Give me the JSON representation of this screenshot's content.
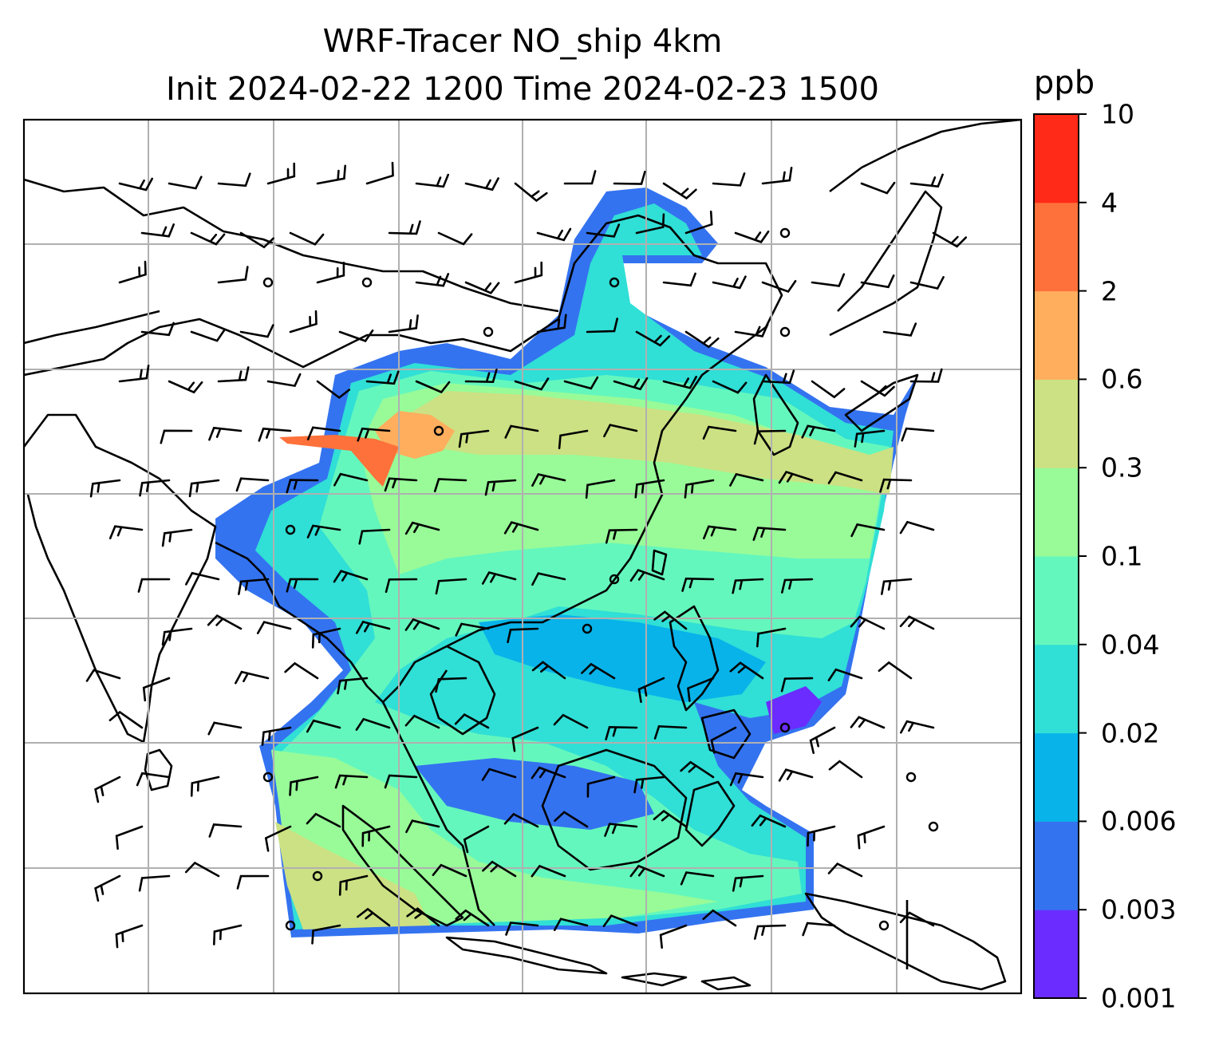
{
  "title_line1": "WRF-Tracer NO_ship 4km",
  "title_line2": "Init 2024-02-22 1200 Time 2024-02-23 1500",
  "colorbar": {
    "title": "ppb",
    "levels": [
      "0.001",
      "0.003",
      "0.006",
      "0.02",
      "0.04",
      "0.1",
      "0.3",
      "0.6",
      "2",
      "4",
      "10"
    ],
    "colors": [
      "#6a2cff",
      "#3473f0",
      "#08b3ea",
      "#30dfd6",
      "#64f7bd",
      "#98fb98",
      "#cce183",
      "#ffae5e",
      "#ff713a",
      "#ff2a17"
    ]
  },
  "map": {
    "grid": true,
    "coastlines": true,
    "wind_barbs": true,
    "background": "#ffffff"
  }
}
